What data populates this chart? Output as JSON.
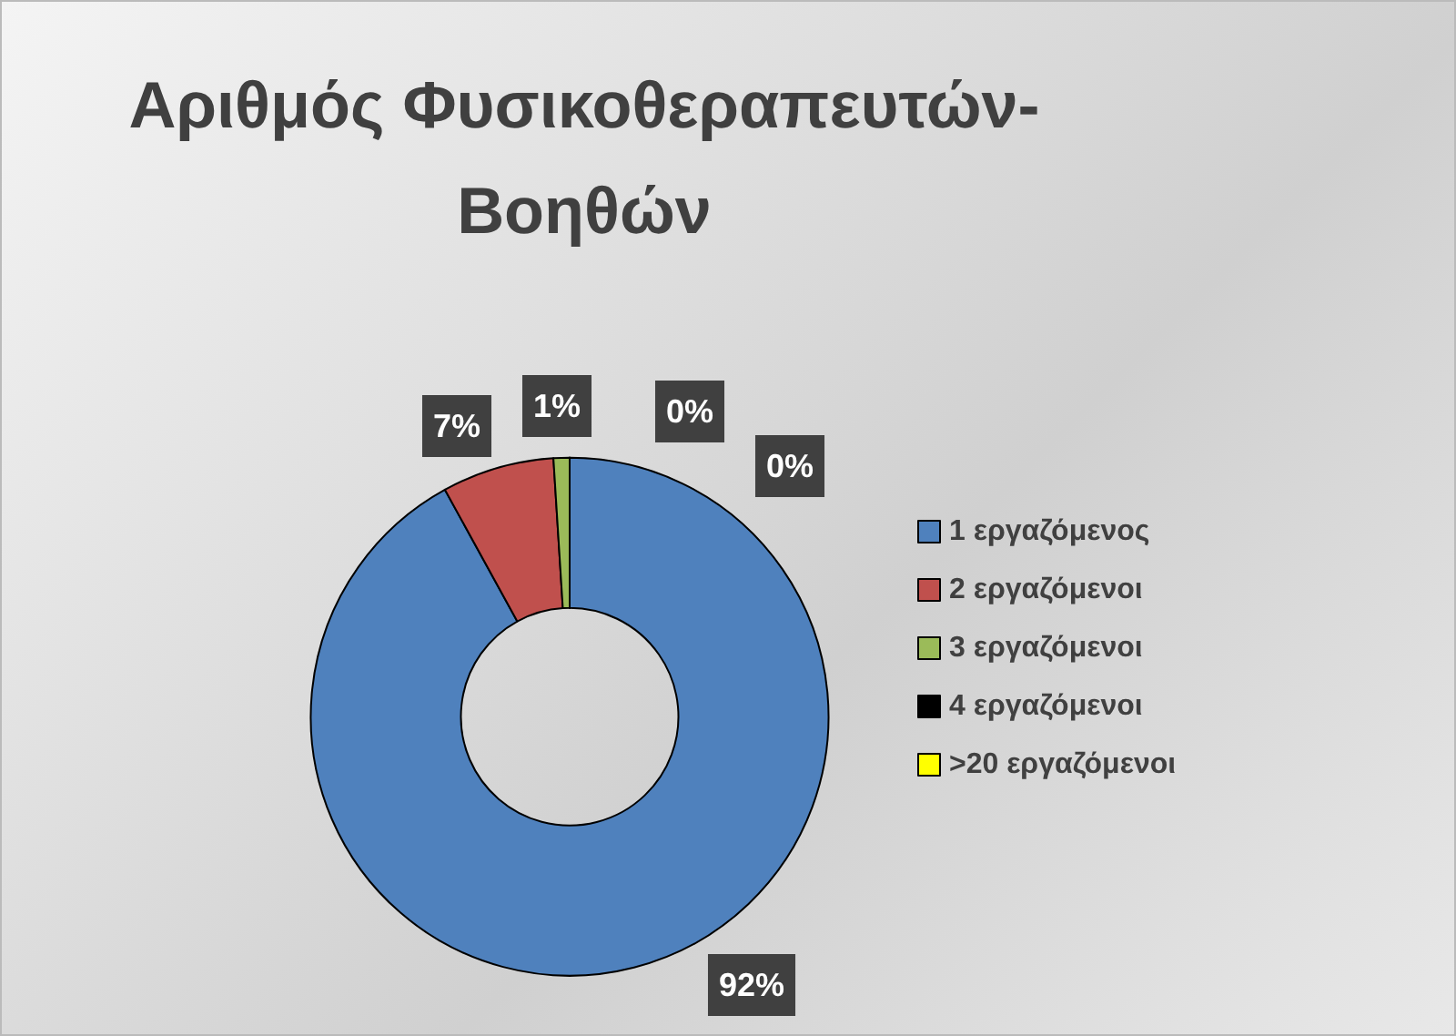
{
  "chart_data": {
    "type": "donut",
    "title": "Αριθμός Φυσικοθεραπευτών-Βοηθών",
    "categories": [
      "1 εργαζόμενος",
      "2 εργαζόμενοι",
      "3 εργαζόμενοι",
      "4 εργαζόμενοι",
      ">20 εργαζόμενοι"
    ],
    "values": [
      92,
      7,
      1,
      0,
      0
    ],
    "colors": [
      "#4f81bd",
      "#c0504d",
      "#9bbb59",
      "#000000",
      "#ffff00"
    ],
    "value_labels": [
      "92%",
      "7%",
      "1%",
      "0%",
      "0%"
    ],
    "legend": "right"
  }
}
